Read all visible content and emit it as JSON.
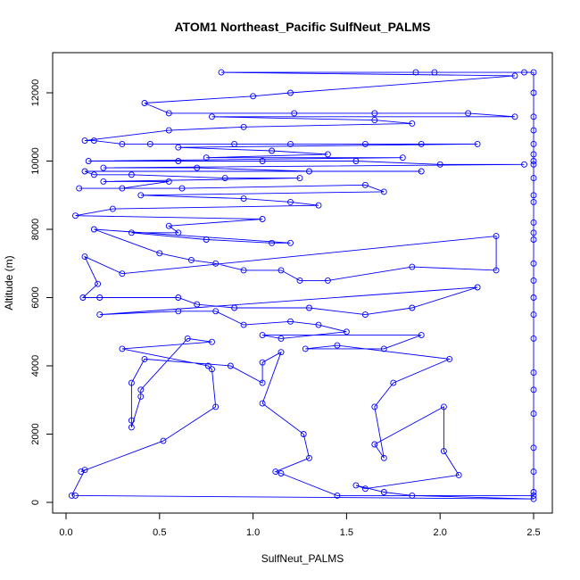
{
  "chart_data": {
    "type": "line",
    "title": "ATOM1 Northeast_Pacific SulfNeut_PALMS",
    "xlabel": "SulfNeut_PALMS",
    "ylabel": "Altitude (m)",
    "xlim": [
      0.0,
      2.5
    ],
    "ylim": [
      0,
      12000
    ],
    "xticks": [
      {
        "value": 0.0,
        "label": "0.0"
      },
      {
        "value": 0.5,
        "label": "0.5"
      },
      {
        "value": 1.0,
        "label": "1.0"
      },
      {
        "value": 1.5,
        "label": "1.5"
      },
      {
        "value": 2.0,
        "label": "2.0"
      },
      {
        "value": 2.5,
        "label": "2.5"
      }
    ],
    "yticks": [
      {
        "value": 0,
        "label": "0"
      },
      {
        "value": 2000,
        "label": "2000"
      },
      {
        "value": 4000,
        "label": "4000"
      },
      {
        "value": 6000,
        "label": "6000"
      },
      {
        "value": 8000,
        "label": "8000"
      },
      {
        "value": 10000,
        "label": "10000"
      },
      {
        "value": 12000,
        "label": "12000"
      }
    ],
    "grid": false,
    "legend": "none",
    "color": "#0000ff",
    "marker": "open-circle",
    "series": [
      {
        "values": [
          [
            0.03,
            200
          ],
          [
            0.1,
            950
          ],
          [
            0.08,
            900
          ],
          [
            0.52,
            1800
          ],
          [
            0.8,
            2800
          ],
          [
            0.78,
            3900
          ],
          [
            0.76,
            4000
          ],
          [
            0.3,
            4500
          ],
          [
            0.78,
            4700
          ],
          [
            0.65,
            4800
          ],
          [
            0.4,
            3300
          ],
          [
            0.4,
            3100
          ],
          [
            0.35,
            2200
          ],
          [
            0.35,
            2400
          ],
          [
            0.35,
            3500
          ],
          [
            0.42,
            4200
          ],
          [
            0.88,
            4000
          ],
          [
            1.05,
            3500
          ],
          [
            1.05,
            4100
          ],
          [
            1.15,
            4400
          ],
          [
            1.05,
            2900
          ],
          [
            1.27,
            2000
          ],
          [
            1.3,
            1300
          ],
          [
            1.12,
            900
          ],
          [
            1.15,
            850
          ],
          [
            1.45,
            200
          ],
          [
            2.5,
            200
          ],
          [
            2.5,
            300
          ],
          [
            2.5,
            900
          ],
          [
            2.5,
            1600
          ],
          [
            2.5,
            2600
          ],
          [
            2.5,
            3300
          ],
          [
            2.5,
            3800
          ],
          [
            2.5,
            4800
          ],
          [
            2.5,
            5500
          ],
          [
            2.5,
            6000
          ],
          [
            2.5,
            6500
          ],
          [
            2.5,
            7000
          ],
          [
            2.5,
            7700
          ],
          [
            2.5,
            7900
          ],
          [
            2.5,
            8200
          ],
          [
            2.5,
            8800
          ],
          [
            2.5,
            9000
          ],
          [
            2.5,
            9500
          ],
          [
            2.5,
            9900
          ],
          [
            2.5,
            10000
          ],
          [
            2.5,
            10200
          ],
          [
            2.5,
            10500
          ],
          [
            2.5,
            10900
          ],
          [
            2.5,
            11300
          ],
          [
            2.5,
            12000
          ],
          [
            2.5,
            12600
          ],
          [
            2.45,
            12600
          ],
          [
            1.97,
            12600
          ],
          [
            1.87,
            12600
          ],
          [
            0.83,
            12600
          ],
          [
            2.4,
            12500
          ],
          [
            1.2,
            12000
          ],
          [
            1.0,
            11900
          ],
          [
            0.42,
            11700
          ],
          [
            0.55,
            11400
          ],
          [
            1.22,
            11400
          ],
          [
            1.65,
            11400
          ],
          [
            2.15,
            11400
          ],
          [
            2.4,
            11300
          ],
          [
            0.78,
            11300
          ],
          [
            1.65,
            11200
          ],
          [
            1.85,
            11100
          ],
          [
            0.95,
            11000
          ],
          [
            0.55,
            10900
          ],
          [
            0.1,
            10600
          ],
          [
            0.15,
            10600
          ],
          [
            0.3,
            10500
          ],
          [
            0.45,
            10500
          ],
          [
            0.9,
            10500
          ],
          [
            1.2,
            10500
          ],
          [
            1.6,
            10500
          ],
          [
            1.9,
            10500
          ],
          [
            2.2,
            10500
          ],
          [
            0.6,
            10400
          ],
          [
            1.1,
            10300
          ],
          [
            1.4,
            10200
          ],
          [
            0.75,
            10100
          ],
          [
            1.8,
            10100
          ],
          [
            0.12,
            10000
          ],
          [
            0.6,
            10000
          ],
          [
            1.05,
            10000
          ],
          [
            1.55,
            10000
          ],
          [
            2.0,
            9900
          ],
          [
            2.45,
            9900
          ],
          [
            0.2,
            9800
          ],
          [
            0.7,
            9800
          ],
          [
            1.3,
            9700
          ],
          [
            1.9,
            9700
          ],
          [
            0.1,
            9700
          ],
          [
            0.15,
            9600
          ],
          [
            0.35,
            9600
          ],
          [
            0.85,
            9500
          ],
          [
            1.25,
            9500
          ],
          [
            0.2,
            9400
          ],
          [
            0.55,
            9400
          ],
          [
            0.3,
            9200
          ],
          [
            0.07,
            9200
          ],
          [
            0.62,
            9200
          ],
          [
            1.6,
            9300
          ],
          [
            1.7,
            9100
          ],
          [
            0.4,
            9000
          ],
          [
            0.95,
            8900
          ],
          [
            1.2,
            8800
          ],
          [
            1.35,
            8700
          ],
          [
            0.25,
            8600
          ],
          [
            0.05,
            8400
          ],
          [
            1.05,
            8300
          ],
          [
            0.55,
            8100
          ],
          [
            0.6,
            7900
          ],
          [
            0.35,
            7900
          ],
          [
            0.75,
            7700
          ],
          [
            1.1,
            7600
          ],
          [
            1.2,
            7600
          ],
          [
            0.15,
            8000
          ],
          [
            0.5,
            7300
          ],
          [
            0.67,
            7100
          ],
          [
            0.8,
            7000
          ],
          [
            0.95,
            6800
          ],
          [
            1.15,
            6800
          ],
          [
            1.25,
            6500
          ],
          [
            1.4,
            6500
          ],
          [
            1.85,
            6900
          ],
          [
            2.3,
            6800
          ],
          [
            2.3,
            7800
          ],
          [
            0.3,
            6700
          ],
          [
            0.1,
            7200
          ],
          [
            0.17,
            6400
          ],
          [
            0.09,
            6000
          ],
          [
            0.18,
            6000
          ],
          [
            0.6,
            6000
          ],
          [
            0.7,
            5800
          ],
          [
            0.9,
            5700
          ],
          [
            1.3,
            5700
          ],
          [
            1.6,
            5500
          ],
          [
            1.85,
            5700
          ],
          [
            2.2,
            6300
          ],
          [
            0.18,
            5500
          ],
          [
            0.6,
            5600
          ],
          [
            0.8,
            5600
          ],
          [
            0.95,
            5200
          ],
          [
            1.2,
            5300
          ],
          [
            1.35,
            5200
          ],
          [
            1.5,
            5000
          ],
          [
            1.15,
            4800
          ],
          [
            1.05,
            4900
          ],
          [
            1.9,
            4900
          ],
          [
            1.7,
            4500
          ],
          [
            1.28,
            4500
          ],
          [
            1.45,
            4600
          ],
          [
            2.05,
            4200
          ],
          [
            1.75,
            3500
          ],
          [
            1.65,
            2800
          ],
          [
            1.7,
            1300
          ],
          [
            1.65,
            1700
          ],
          [
            2.02,
            2800
          ],
          [
            2.02,
            1500
          ],
          [
            2.1,
            800
          ],
          [
            1.6,
            400
          ],
          [
            1.55,
            500
          ],
          [
            1.7,
            300
          ],
          [
            1.85,
            200
          ],
          [
            2.5,
            100
          ],
          [
            0.05,
            200
          ]
        ]
      }
    ]
  }
}
